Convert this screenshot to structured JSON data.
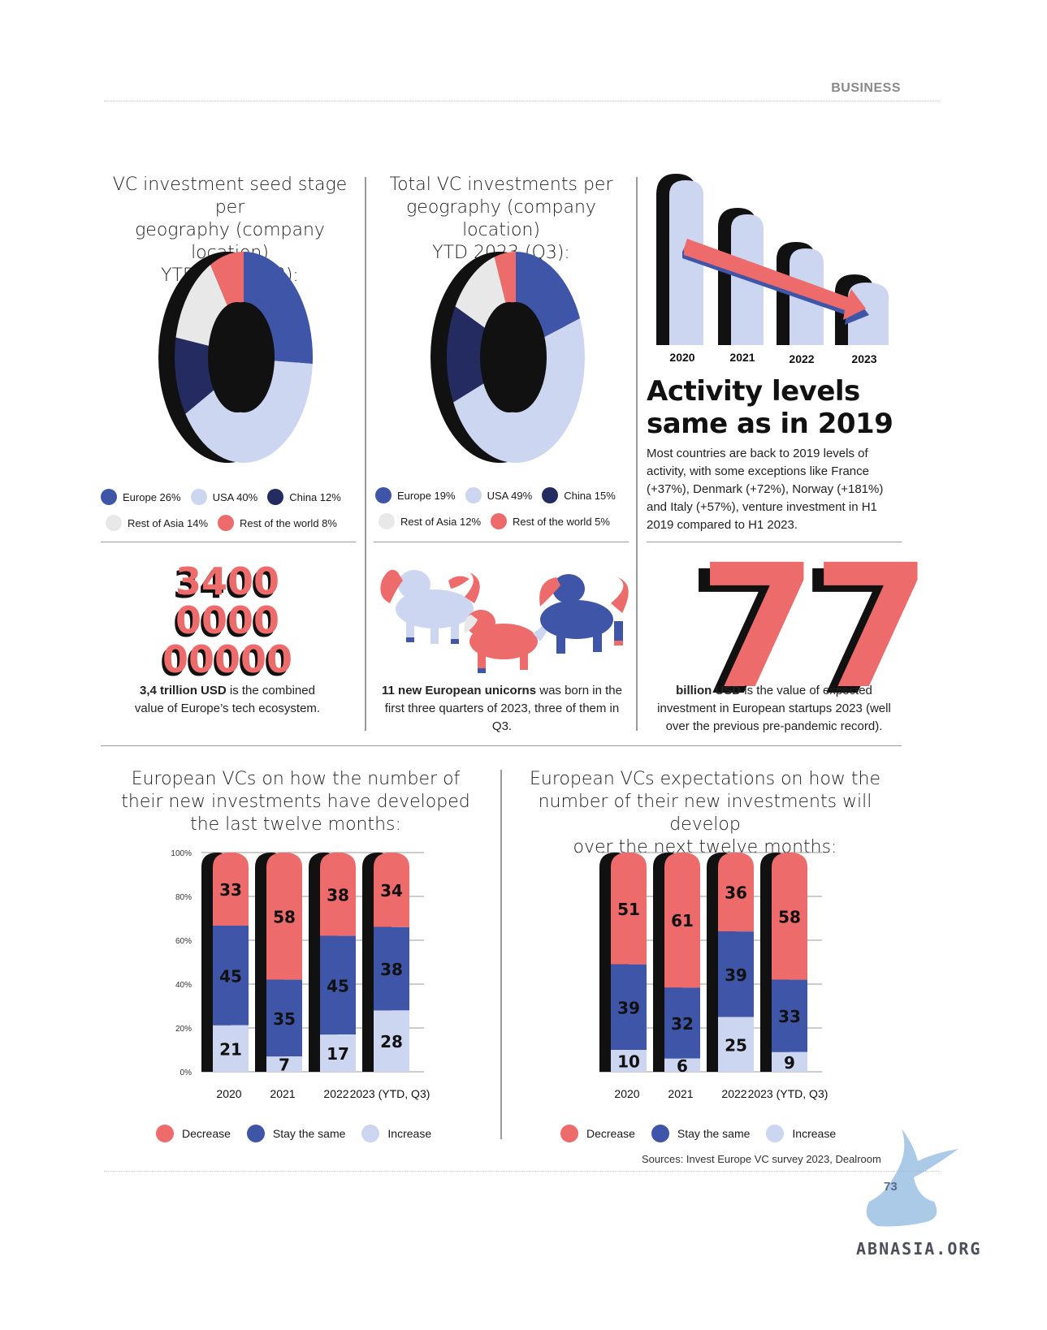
{
  "header": {
    "section": "BUSINESS"
  },
  "colors": {
    "blue": "#3f55a8",
    "light": "#cdd6f0",
    "navy": "#232b61",
    "grey": "#e8e8e8",
    "red": "#ee6b6b",
    "black": "#111111"
  },
  "donut1": {
    "title": [
      "VC investment seed stage per",
      "geography (company location)",
      "YTD 2023 (Q3):"
    ],
    "legend": [
      "Europe 26%",
      "USA 40%",
      "China 12%",
      "Rest of Asia 14%",
      "Rest of the world 8%"
    ]
  },
  "donut2": {
    "title": [
      "Total VC investments per",
      "geography (company location)",
      "YTD 2023 (Q3):"
    ],
    "legend": [
      "Europe 19%",
      "USA 49%",
      "China 15%",
      "Rest of  Asia 12%",
      "Rest of the world 5%"
    ]
  },
  "activity": {
    "years": [
      "2020",
      "2021",
      "2022",
      "2023"
    ],
    "headline": [
      "Activity levels",
      "same as in 2019"
    ],
    "body": "Most countries are back to 2019 levels of activity, with some exceptions like France (+37%), Denmark (+72%), Norway (+181%) and Italy (+57%), venture investment in H1 2019 compared to H1 2023."
  },
  "stat1": {
    "digits": [
      "3400",
      "0000",
      "00000"
    ],
    "bold": "3,4 trillion USD",
    "rest": " is the combined value of Europe’s tech ecosystem."
  },
  "stat2": {
    "bold": "11 new European unicorns",
    "rest": " was born in the first three quarters of 2023, three of them in Q3."
  },
  "stat3": {
    "number": "77",
    "bold": "billion USD",
    "rest": " is the value of expected investment in European startups 2023 (well over the previous pre-pandemic record)."
  },
  "bars1": {
    "title": [
      "European VCs on how the number of",
      "their new investments have developed",
      "the last twelve months:"
    ]
  },
  "bars2": {
    "title": [
      "European VCs expectations on how the",
      "number of their new investments will develop",
      "over the next twelve months:"
    ]
  },
  "bar_legend": [
    "Decrease",
    "Stay the same",
    "Increase"
  ],
  "footer": {
    "source": "Sources: Invest Europe VC survey 2023, Dealroom",
    "page": "73",
    "watermark": "ABNASIA.ORG"
  },
  "chart_data": [
    {
      "type": "pie",
      "title": "VC investment seed stage per geography (company location) YTD 2023 (Q3):",
      "labels": [
        "Europe",
        "USA",
        "China",
        "Rest of Asia",
        "Rest of the world"
      ],
      "values": [
        26,
        40,
        12,
        14,
        8
      ]
    },
    {
      "type": "pie",
      "title": "Total VC investments per geography (company location) YTD 2023 (Q3):",
      "labels": [
        "Europe",
        "USA",
        "China",
        "Rest of  Asia",
        "Rest of the world"
      ],
      "values": [
        19,
        49,
        15,
        12,
        5
      ]
    },
    {
      "type": "bar",
      "stacked": true,
      "title": "European VCs on how the number of their new investments have developed the last twelve months:",
      "categories": [
        "2020",
        "2021",
        "2022",
        "2023 (YTD, Q3)"
      ],
      "yticks": [
        "0%",
        "20%",
        "40%",
        "60%",
        "80%",
        "100%"
      ],
      "ylim": [
        0,
        100
      ],
      "series": [
        {
          "name": "Decrease",
          "values": [
            33,
            58,
            38,
            34
          ]
        },
        {
          "name": "Stay the same",
          "values": [
            45,
            35,
            45,
            38
          ]
        },
        {
          "name": "Increase",
          "values": [
            21,
            7,
            17,
            28
          ]
        }
      ]
    },
    {
      "type": "bar",
      "stacked": true,
      "title": "European VCs expectations on how the number of their new investments will develop over the next twelve months:",
      "categories": [
        "2020",
        "2021",
        "2022",
        "2023 (YTD, Q3)"
      ],
      "ylim": [
        0,
        100
      ],
      "series": [
        {
          "name": "Decrease",
          "values": [
            51,
            61,
            36,
            58
          ]
        },
        {
          "name": "Stay the same",
          "values": [
            39,
            32,
            39,
            33
          ]
        },
        {
          "name": "Increase",
          "values": [
            10,
            6,
            25,
            9
          ]
        }
      ]
    }
  ]
}
